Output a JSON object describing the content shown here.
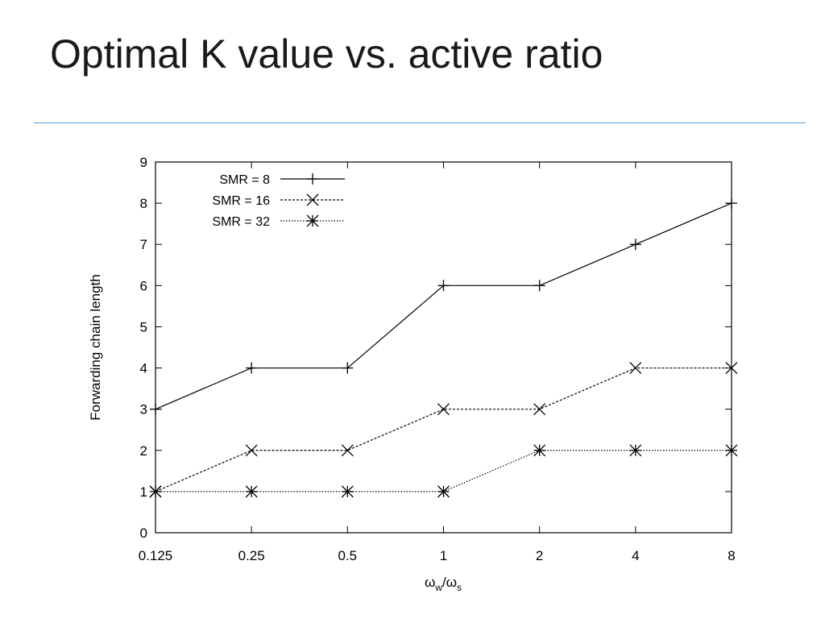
{
  "slide": {
    "title": "Optimal K value vs. active ratio"
  },
  "chart_data": {
    "type": "line",
    "title": "",
    "xlabel_main": "ω",
    "xlabel_sub1": "w",
    "xlabel_slash": "/ω",
    "xlabel_sub2": "s",
    "ylabel": "Forwarding chain length",
    "categories": [
      "0.125",
      "0.25",
      "0.5",
      "1",
      "2",
      "4",
      "8"
    ],
    "ylim": [
      0,
      9
    ],
    "yticks": [
      "0",
      "1",
      "2",
      "3",
      "4",
      "5",
      "6",
      "7",
      "8",
      "9"
    ],
    "grid": false,
    "legend_position": "top-left",
    "series": [
      {
        "name": "SMR = 8",
        "marker": "plus",
        "values": [
          3,
          4,
          4,
          6,
          6,
          7,
          8
        ]
      },
      {
        "name": "SMR = 16",
        "marker": "cross",
        "values": [
          1,
          2,
          2,
          3,
          3,
          4,
          4
        ]
      },
      {
        "name": "SMR = 32",
        "marker": "star",
        "values": [
          1,
          1,
          1,
          1,
          2,
          2,
          2
        ]
      }
    ]
  }
}
